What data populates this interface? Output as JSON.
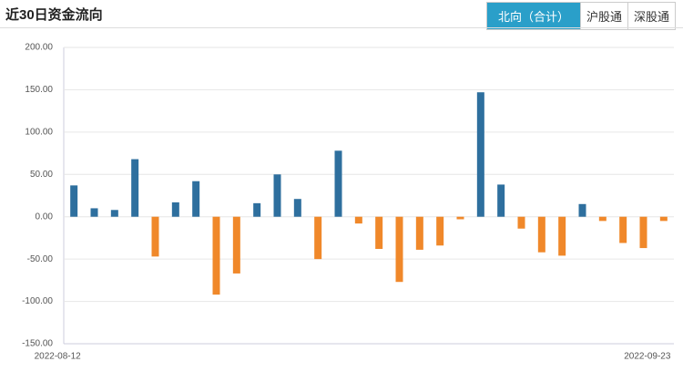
{
  "chart_data": {
    "type": "bar",
    "title": "近30日资金流向",
    "tabs": [
      "北向（合计）",
      "沪股通",
      "深股通"
    ],
    "active_tab": 0,
    "categories": [
      "2022-08-12",
      null,
      null,
      null,
      null,
      null,
      null,
      null,
      null,
      null,
      null,
      null,
      null,
      null,
      null,
      null,
      null,
      null,
      null,
      null,
      null,
      null,
      null,
      null,
      null,
      null,
      null,
      null,
      null,
      "2022-09-23"
    ],
    "values": [
      37,
      10,
      8,
      68,
      -47,
      17,
      42,
      -92,
      -67,
      16,
      50,
      21,
      -50,
      78,
      -8,
      -38,
      -77,
      -39,
      -34,
      -3,
      147,
      38,
      -14,
      -42,
      -46,
      15,
      -5,
      -31,
      -37,
      -5
    ],
    "positive_color": "#2e6f9e",
    "negative_color": "#f0882a",
    "ylim": [
      -150,
      200
    ],
    "yticks": [
      {
        "value": -150,
        "label": "-150.00"
      },
      {
        "value": -100,
        "label": "-100.00"
      },
      {
        "value": -50,
        "label": "-50.00"
      },
      {
        "value": 0,
        "label": "0.00"
      },
      {
        "value": 50,
        "label": "50.00"
      },
      {
        "value": 100,
        "label": "100.00"
      },
      {
        "value": 150,
        "label": "150.00"
      },
      {
        "value": 200,
        "label": "200.00"
      }
    ],
    "grid": true
  }
}
